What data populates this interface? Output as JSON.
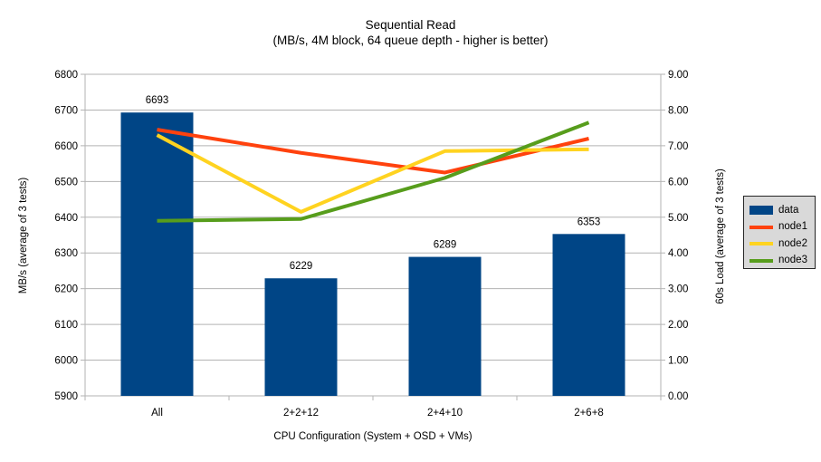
{
  "chart_data": {
    "type": "combo-bar-line",
    "title": "Sequential Read",
    "subtitle": "(MB/s, 4M block, 64 queue depth - higher is better)",
    "categories": [
      "All",
      "2+2+12",
      "2+4+10",
      "2+6+8"
    ],
    "bar_series": {
      "name": "data",
      "axis": "left",
      "color": "#004586",
      "values": [
        6693,
        6229,
        6289,
        6353
      ],
      "data_labels": [
        "6693",
        "6229",
        "6289",
        "6353"
      ]
    },
    "line_series": [
      {
        "name": "node1",
        "axis": "right",
        "color": "#ff420e",
        "values": [
          7.45,
          6.8,
          6.25,
          7.2
        ]
      },
      {
        "name": "node2",
        "axis": "right",
        "color": "#ffd320",
        "values": [
          7.3,
          5.15,
          6.85,
          6.9
        ]
      },
      {
        "name": "node3",
        "axis": "right",
        "color": "#579d1c",
        "values": [
          4.9,
          4.95,
          6.1,
          7.65
        ]
      }
    ],
    "left_axis": {
      "title": "MB/s (average of 3 tests)",
      "min": 5900,
      "max": 6800,
      "step": 100
    },
    "right_axis": {
      "title": "60s Load (average of 3 tests)",
      "min": 0,
      "max": 9,
      "step": 1,
      "decimals": 2
    },
    "x_axis_title": "CPU Configuration (System + OSD + VMs)",
    "legend": {
      "position": "right",
      "entries": [
        {
          "label": "data",
          "color": "#004586",
          "swatch": "bar"
        },
        {
          "label": "node1",
          "color": "#ff420e",
          "swatch": "line"
        },
        {
          "label": "node2",
          "color": "#ffd320",
          "swatch": "line"
        },
        {
          "label": "node3",
          "color": "#579d1c",
          "swatch": "line"
        }
      ]
    },
    "grid": true,
    "colors": {
      "gridline": "#b3b3b3",
      "axis": "#b3b3b3",
      "legend_bg": "#d9d9d9",
      "legend_border": "#262626",
      "background": "#ffffff",
      "text": "#000000"
    }
  }
}
